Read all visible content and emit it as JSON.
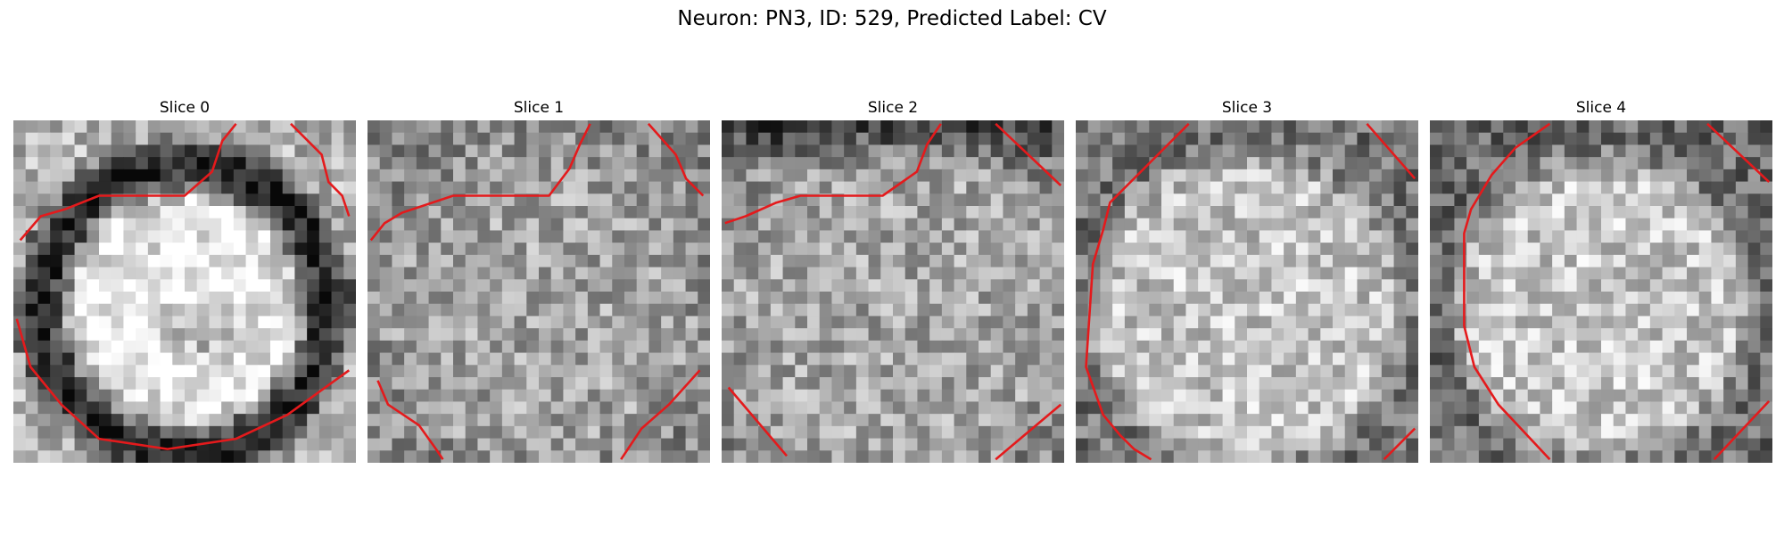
{
  "figure": {
    "suptitle": "Neuron: PN3, ID: 529, Predicted Label: CV",
    "contour_color": "#e41a1c",
    "colormap": "gray",
    "panels": [
      {
        "title": "Slice 0",
        "seed": 11,
        "style": "ring",
        "contours": [
          [
            [
              0.02,
              0.35
            ],
            [
              0.08,
              0.28
            ],
            [
              0.15,
              0.26
            ],
            [
              0.25,
              0.22
            ],
            [
              0.5,
              0.22
            ],
            [
              0.58,
              0.15
            ],
            [
              0.61,
              0.06
            ],
            [
              0.65,
              0.01
            ]
          ],
          [
            [
              0.81,
              0.01
            ],
            [
              0.9,
              0.1
            ],
            [
              0.92,
              0.18
            ],
            [
              0.96,
              0.22
            ],
            [
              0.98,
              0.28
            ]
          ],
          [
            [
              0.01,
              0.58
            ],
            [
              0.05,
              0.72
            ],
            [
              0.14,
              0.83
            ],
            [
              0.25,
              0.93
            ],
            [
              0.45,
              0.96
            ],
            [
              0.65,
              0.93
            ],
            [
              0.8,
              0.86
            ],
            [
              0.98,
              0.73
            ]
          ]
        ]
      },
      {
        "title": "Slice 1",
        "seed": 23,
        "style": "speckle",
        "contours": [
          [
            [
              0.01,
              0.35
            ],
            [
              0.05,
              0.3
            ],
            [
              0.1,
              0.27
            ],
            [
              0.25,
              0.22
            ],
            [
              0.53,
              0.22
            ],
            [
              0.59,
              0.14
            ],
            [
              0.62,
              0.07
            ],
            [
              0.65,
              0.01
            ]
          ],
          [
            [
              0.82,
              0.01
            ],
            [
              0.9,
              0.1
            ],
            [
              0.93,
              0.17
            ],
            [
              0.98,
              0.22
            ]
          ],
          [
            [
              0.03,
              0.76
            ],
            [
              0.06,
              0.83
            ],
            [
              0.15,
              0.89
            ],
            [
              0.2,
              0.96
            ],
            [
              0.22,
              0.99
            ]
          ],
          [
            [
              0.74,
              0.99
            ],
            [
              0.8,
              0.9
            ],
            [
              0.88,
              0.83
            ],
            [
              0.97,
              0.73
            ]
          ]
        ]
      },
      {
        "title": "Slice 2",
        "seed": 37,
        "style": "speckle_dark_top",
        "contours": [
          [
            [
              0.01,
              0.3
            ],
            [
              0.07,
              0.28
            ],
            [
              0.16,
              0.24
            ],
            [
              0.23,
              0.22
            ],
            [
              0.47,
              0.22
            ],
            [
              0.57,
              0.15
            ],
            [
              0.6,
              0.07
            ],
            [
              0.64,
              0.01
            ]
          ],
          [
            [
              0.8,
              0.01
            ],
            [
              0.99,
              0.19
            ]
          ],
          [
            [
              0.02,
              0.78
            ],
            [
              0.19,
              0.98
            ]
          ],
          [
            [
              0.8,
              0.99
            ],
            [
              0.99,
              0.83
            ]
          ]
        ]
      },
      {
        "title": "Slice 3",
        "seed": 51,
        "style": "bright_disk",
        "contours": [
          [
            [
              0.33,
              0.01
            ],
            [
              0.1,
              0.24
            ],
            [
              0.08,
              0.32
            ],
            [
              0.05,
              0.42
            ],
            [
              0.03,
              0.72
            ],
            [
              0.08,
              0.86
            ],
            [
              0.13,
              0.92
            ],
            [
              0.17,
              0.96
            ],
            [
              0.22,
              0.99
            ]
          ],
          [
            [
              0.85,
              0.01
            ],
            [
              0.99,
              0.17
            ]
          ],
          [
            [
              0.9,
              0.99
            ],
            [
              0.99,
              0.9
            ]
          ]
        ]
      },
      {
        "title": "Slice 4",
        "seed": 67,
        "style": "bright_disk2",
        "contours": [
          [
            [
              0.35,
              0.01
            ],
            [
              0.25,
              0.08
            ],
            [
              0.18,
              0.16
            ],
            [
              0.12,
              0.26
            ],
            [
              0.1,
              0.33
            ],
            [
              0.1,
              0.6
            ],
            [
              0.13,
              0.72
            ],
            [
              0.2,
              0.83
            ],
            [
              0.35,
              0.99
            ]
          ],
          [
            [
              0.81,
              0.01
            ],
            [
              0.99,
              0.18
            ]
          ],
          [
            [
              0.83,
              0.99
            ],
            [
              0.99,
              0.82
            ]
          ]
        ]
      }
    ]
  }
}
